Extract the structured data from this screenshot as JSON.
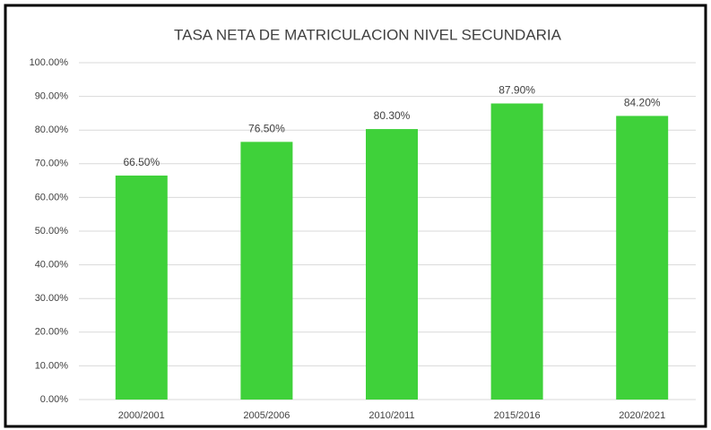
{
  "chart_data": {
    "type": "bar",
    "title": "TASA NETA DE MATRICULACION NIVEL SECUNDARIA",
    "categories": [
      "2000/2001",
      "2005/2006",
      "2010/2011",
      "2015/2016",
      "2020/2021"
    ],
    "values": [
      66.5,
      76.5,
      80.3,
      87.9,
      84.2
    ],
    "value_labels": [
      "66.50%",
      "76.50%",
      "80.30%",
      "87.90%",
      "84.20%"
    ],
    "color": "#3fd13a",
    "ylim": [
      0,
      100
    ],
    "yticks": [
      {
        "value": 0,
        "label": "0.00%"
      },
      {
        "value": 10,
        "label": "10.00%"
      },
      {
        "value": 20,
        "label": "20.00%"
      },
      {
        "value": 30,
        "label": "30.00%"
      },
      {
        "value": 40,
        "label": "40.00%"
      },
      {
        "value": 50,
        "label": "50.00%"
      },
      {
        "value": 60,
        "label": "60.00%"
      },
      {
        "value": 70,
        "label": "70.00%"
      },
      {
        "value": 80,
        "label": "80.00%"
      },
      {
        "value": 90,
        "label": "90.00%"
      },
      {
        "value": 100,
        "label": "100.00%"
      }
    ],
    "grid": true
  }
}
